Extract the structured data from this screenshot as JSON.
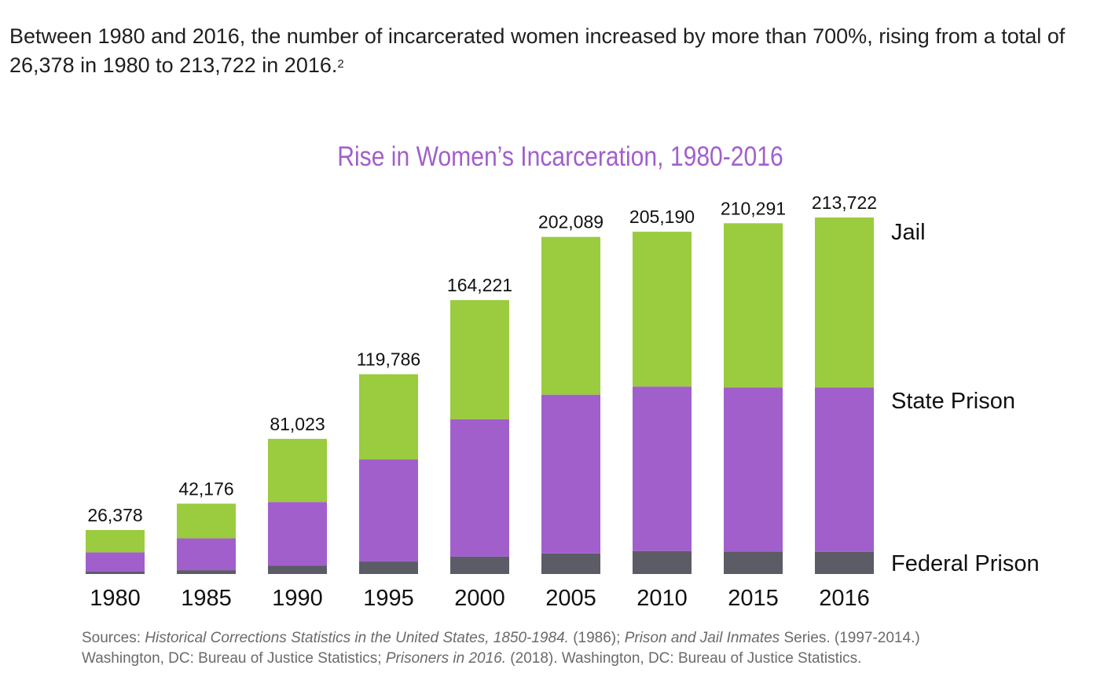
{
  "intro": {
    "text": "Between 1980 and 2016, the number of incarcerated women increased by more than 700%, rising from a total of 26,378 in 1980 to 213,722 in 2016.",
    "footnote": "2"
  },
  "chart_data": {
    "type": "bar",
    "stacked": true,
    "title": "Rise in Women’s Incarceration, 1980-2016",
    "xlabel": "",
    "ylabel": "",
    "ylim": [
      0,
      213722
    ],
    "grid": false,
    "legend": "right, labels beside last bar",
    "categories": [
      "1980",
      "1985",
      "1990",
      "1995",
      "2000",
      "2005",
      "2010",
      "2015",
      "2016"
    ],
    "totals": [
      26378,
      42176,
      81023,
      119786,
      164221,
      202089,
      205190,
      210291,
      213722
    ],
    "total_labels": [
      "26,378",
      "42,176",
      "81,023",
      "119,786",
      "164,221",
      "202,089",
      "205,190",
      "210,291",
      "213,722"
    ],
    "series": [
      {
        "name": "Federal Prison",
        "color": "#5b5c66",
        "values": [
          1400,
          2300,
          5100,
          7500,
          10400,
          12300,
          13800,
          13500,
          13200
        ]
      },
      {
        "name": "State Prison",
        "color": "#a15fcc",
        "values": [
          11600,
          19100,
          38100,
          61200,
          82400,
          95200,
          98600,
          98400,
          98700
        ]
      },
      {
        "name": "Jail",
        "color": "#9bcb3f",
        "values": [
          13378,
          20776,
          37823,
          51086,
          71421,
          94589,
          92790,
          98391,
          101822
        ]
      }
    ]
  },
  "sources": {
    "line1": [
      {
        "text": "Sources: ",
        "italic": false
      },
      {
        "text": "Historical Corrections Statistics in the United States, 1850-1984.",
        "italic": true
      },
      {
        "text": " (1986); ",
        "italic": false
      },
      {
        "text": "Prison and Jail Inmates",
        "italic": true
      },
      {
        "text": " Series. (1997-2014.)",
        "italic": false
      }
    ],
    "line2": [
      {
        "text": "Washington, DC: Bureau of Justice Statistics; ",
        "italic": false
      },
      {
        "text": "Prisoners in 2016.",
        "italic": true
      },
      {
        "text": " (2018). Washington, DC: Bureau of Justice Statistics.",
        "italic": false
      }
    ]
  }
}
